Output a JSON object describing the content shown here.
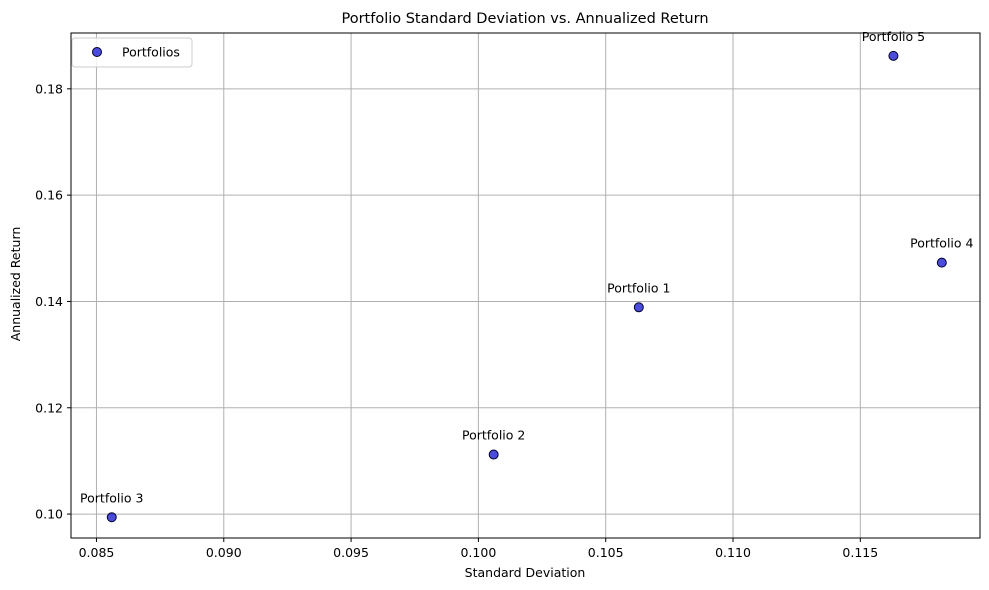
{
  "chart_data": {
    "type": "scatter",
    "title": "Portfolio Standard Deviation vs. Annualized Return",
    "xlabel": "Standard Deviation",
    "ylabel": "Annualized Return",
    "xlim": [
      0.084,
      0.1197
    ],
    "ylim": [
      0.0955,
      0.1905
    ],
    "xticks": [
      0.085,
      0.09,
      0.095,
      0.1,
      0.105,
      0.11,
      0.115
    ],
    "xtick_labels": [
      "0.085",
      "0.090",
      "0.095",
      "0.100",
      "0.105",
      "0.110",
      "0.115"
    ],
    "yticks": [
      0.1,
      0.12,
      0.14,
      0.16,
      0.18
    ],
    "ytick_labels": [
      "0.10",
      "0.12",
      "0.14",
      "0.16",
      "0.18"
    ],
    "grid": true,
    "legend": {
      "placement": "upper-left",
      "entries": [
        "Portfolios"
      ]
    },
    "series": [
      {
        "name": "Portfolios",
        "color": "#0000cc",
        "edge_color": "#000033",
        "points": [
          {
            "label": "Portfolio 1",
            "x": 0.1063,
            "y": 0.1389
          },
          {
            "label": "Portfolio 2",
            "x": 0.1006,
            "y": 0.1112
          },
          {
            "label": "Portfolio 3",
            "x": 0.0856,
            "y": 0.0994
          },
          {
            "label": "Portfolio 4",
            "x": 0.1182,
            "y": 0.1473
          },
          {
            "label": "Portfolio 5",
            "x": 0.1163,
            "y": 0.1862
          }
        ]
      }
    ]
  }
}
